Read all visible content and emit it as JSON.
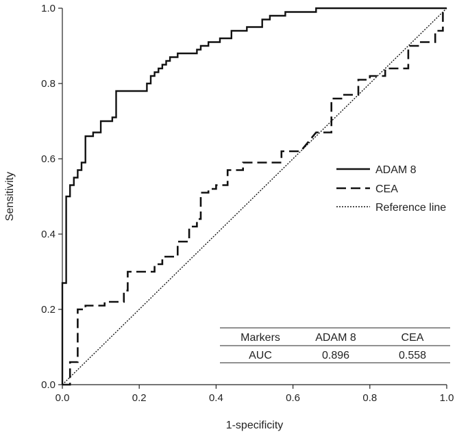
{
  "chart_data": {
    "type": "line",
    "title": "",
    "xlabel": "1-specificity",
    "ylabel": "Sensitivity",
    "xlim": [
      0,
      1
    ],
    "ylim": [
      0,
      1
    ],
    "x_ticks": [
      "0.0",
      "0.2",
      "0.4",
      "0.6",
      "0.8",
      "1.0"
    ],
    "y_ticks": [
      "0.0",
      "0.2",
      "0.4",
      "0.6",
      "0.8",
      "1.0"
    ],
    "legend_position": "right",
    "series": [
      {
        "name": "ADAM 8",
        "style": "solid",
        "points": [
          [
            0,
            0
          ],
          [
            0,
            0.27
          ],
          [
            0.01,
            0.27
          ],
          [
            0.01,
            0.5
          ],
          [
            0.02,
            0.5
          ],
          [
            0.02,
            0.53
          ],
          [
            0.03,
            0.53
          ],
          [
            0.03,
            0.55
          ],
          [
            0.04,
            0.55
          ],
          [
            0.04,
            0.57
          ],
          [
            0.05,
            0.57
          ],
          [
            0.05,
            0.59
          ],
          [
            0.06,
            0.59
          ],
          [
            0.06,
            0.66
          ],
          [
            0.08,
            0.66
          ],
          [
            0.08,
            0.67
          ],
          [
            0.1,
            0.67
          ],
          [
            0.1,
            0.7
          ],
          [
            0.13,
            0.7
          ],
          [
            0.13,
            0.71
          ],
          [
            0.14,
            0.71
          ],
          [
            0.14,
            0.78
          ],
          [
            0.22,
            0.78
          ],
          [
            0.22,
            0.8
          ],
          [
            0.23,
            0.8
          ],
          [
            0.23,
            0.82
          ],
          [
            0.24,
            0.82
          ],
          [
            0.24,
            0.83
          ],
          [
            0.25,
            0.83
          ],
          [
            0.25,
            0.84
          ],
          [
            0.26,
            0.84
          ],
          [
            0.26,
            0.85
          ],
          [
            0.27,
            0.85
          ],
          [
            0.27,
            0.86
          ],
          [
            0.28,
            0.86
          ],
          [
            0.28,
            0.87
          ],
          [
            0.3,
            0.87
          ],
          [
            0.3,
            0.88
          ],
          [
            0.35,
            0.88
          ],
          [
            0.35,
            0.89
          ],
          [
            0.36,
            0.89
          ],
          [
            0.36,
            0.9
          ],
          [
            0.38,
            0.9
          ],
          [
            0.38,
            0.91
          ],
          [
            0.41,
            0.91
          ],
          [
            0.41,
            0.92
          ],
          [
            0.44,
            0.92
          ],
          [
            0.44,
            0.94
          ],
          [
            0.48,
            0.94
          ],
          [
            0.48,
            0.95
          ],
          [
            0.52,
            0.95
          ],
          [
            0.52,
            0.97
          ],
          [
            0.54,
            0.97
          ],
          [
            0.54,
            0.98
          ],
          [
            0.58,
            0.98
          ],
          [
            0.58,
            0.99
          ],
          [
            0.66,
            0.99
          ],
          [
            0.66,
            1.0
          ],
          [
            1.0,
            1.0
          ]
        ]
      },
      {
        "name": "CEA",
        "style": "dashed",
        "points": [
          [
            0,
            0
          ],
          [
            0.01,
            0
          ],
          [
            0.02,
            0
          ],
          [
            0.02,
            0.06
          ],
          [
            0.04,
            0.06
          ],
          [
            0.04,
            0.2
          ],
          [
            0.06,
            0.2
          ],
          [
            0.06,
            0.21
          ],
          [
            0.11,
            0.21
          ],
          [
            0.11,
            0.22
          ],
          [
            0.16,
            0.22
          ],
          [
            0.16,
            0.25
          ],
          [
            0.17,
            0.25
          ],
          [
            0.17,
            0.3
          ],
          [
            0.24,
            0.3
          ],
          [
            0.24,
            0.32
          ],
          [
            0.26,
            0.32
          ],
          [
            0.26,
            0.34
          ],
          [
            0.3,
            0.34
          ],
          [
            0.3,
            0.38
          ],
          [
            0.33,
            0.38
          ],
          [
            0.33,
            0.42
          ],
          [
            0.35,
            0.42
          ],
          [
            0.35,
            0.44
          ],
          [
            0.36,
            0.44
          ],
          [
            0.36,
            0.51
          ],
          [
            0.38,
            0.51
          ],
          [
            0.38,
            0.52
          ],
          [
            0.4,
            0.52
          ],
          [
            0.4,
            0.53
          ],
          [
            0.43,
            0.53
          ],
          [
            0.43,
            0.57
          ],
          [
            0.47,
            0.57
          ],
          [
            0.47,
            0.59
          ],
          [
            0.57,
            0.59
          ],
          [
            0.57,
            0.62
          ],
          [
            0.62,
            0.62
          ],
          [
            0.66,
            0.67
          ],
          [
            0.7,
            0.67
          ],
          [
            0.7,
            0.76
          ],
          [
            0.73,
            0.76
          ],
          [
            0.73,
            0.77
          ],
          [
            0.77,
            0.77
          ],
          [
            0.77,
            0.81
          ],
          [
            0.8,
            0.81
          ],
          [
            0.8,
            0.82
          ],
          [
            0.84,
            0.82
          ],
          [
            0.84,
            0.84
          ],
          [
            0.9,
            0.84
          ],
          [
            0.9,
            0.9
          ],
          [
            0.93,
            0.9
          ],
          [
            0.93,
            0.91
          ],
          [
            0.97,
            0.91
          ],
          [
            0.97,
            0.94
          ],
          [
            0.99,
            0.94
          ],
          [
            0.99,
            0.99
          ],
          [
            1.0,
            0.99
          ]
        ]
      },
      {
        "name": "Reference line",
        "style": "dotted",
        "points": [
          [
            0,
            0
          ],
          [
            1,
            1
          ]
        ]
      }
    ],
    "table": {
      "header": [
        "Markers",
        "ADAM 8",
        "CEA"
      ],
      "row": [
        "AUC",
        "0.896",
        "0.558"
      ]
    }
  }
}
